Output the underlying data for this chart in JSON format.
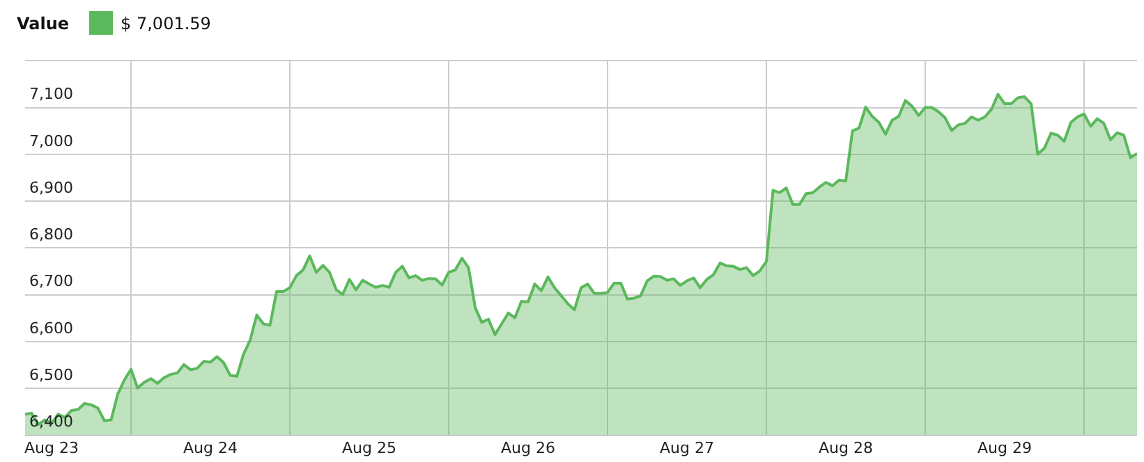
{
  "chart_data": {
    "type": "area",
    "legend_title": "Value",
    "legend": "top left",
    "grid": true,
    "xlim": [
      "--08-23T08:00",
      "--08-30T08:00"
    ],
    "xticks": [
      {
        "value": "--08-23T12:00",
        "label": "Aug 23"
      },
      {
        "value": "--08-24T00:00",
        "label": null
      },
      {
        "value": "--08-24T12:00",
        "label": "Aug 24"
      },
      {
        "value": "--08-25T00:00",
        "label": null
      },
      {
        "value": "--08-25T12:00",
        "label": "Aug 25"
      },
      {
        "value": "--08-26T00:00",
        "label": null
      },
      {
        "value": "--08-26T12:00",
        "label": "Aug 26"
      },
      {
        "value": "--08-27T00:00",
        "label": null
      },
      {
        "value": "--08-27T12:00",
        "label": "Aug 27"
      },
      {
        "value": "--08-28T00:00",
        "label": null
      },
      {
        "value": "--08-28T12:00",
        "label": "Aug 28"
      },
      {
        "value": "--08-29T00:00",
        "label": null
      },
      {
        "value": "--08-29T12:00",
        "label": "Aug 29"
      },
      {
        "value": "--08-30T00:00",
        "label": null
      }
    ],
    "ylim": [
      6400,
      7200
    ],
    "yticks": [
      {
        "value": 6400,
        "label": "6,400"
      },
      {
        "value": 6500,
        "label": "6,500"
      },
      {
        "value": 6600,
        "label": "6,600"
      },
      {
        "value": 6700,
        "label": "6,700"
      },
      {
        "value": 6800,
        "label": "6,800"
      },
      {
        "value": 6900,
        "label": "6,900"
      },
      {
        "value": 7000,
        "label": "7,000"
      },
      {
        "value": 7100,
        "label": "7,100"
      },
      {
        "value": 7200,
        "label": null
      }
    ],
    "x": [
      "--08-23T08:00",
      "--08-23T09:00",
      "--08-23T10:00",
      "--08-23T11:00",
      "--08-23T12:00",
      "--08-23T13:00",
      "--08-23T14:00",
      "--08-23T15:00",
      "--08-23T16:00",
      "--08-23T17:00",
      "--08-23T18:00",
      "--08-23T19:00",
      "--08-23T20:00",
      "--08-23T21:00",
      "--08-23T22:00",
      "--08-23T23:00",
      "--08-24T00:00",
      "--08-24T01:00",
      "--08-24T02:00",
      "--08-24T03:00",
      "--08-24T04:00",
      "--08-24T05:00",
      "--08-24T06:00",
      "--08-24T07:00",
      "--08-24T08:00",
      "--08-24T09:00",
      "--08-24T10:00",
      "--08-24T11:00",
      "--08-24T12:00",
      "--08-24T13:00",
      "--08-24T14:00",
      "--08-24T15:00",
      "--08-24T16:00",
      "--08-24T17:00",
      "--08-24T18:00",
      "--08-24T19:00",
      "--08-24T20:00",
      "--08-24T21:00",
      "--08-24T22:00",
      "--08-24T23:00",
      "--08-25T00:00",
      "--08-25T01:00",
      "--08-25T02:00",
      "--08-25T03:00",
      "--08-25T04:00",
      "--08-25T05:00",
      "--08-25T06:00",
      "--08-25T07:00",
      "--08-25T08:00",
      "--08-25T09:00",
      "--08-25T10:00",
      "--08-25T11:00",
      "--08-25T12:00",
      "--08-25T13:00",
      "--08-25T14:00",
      "--08-25T15:00",
      "--08-25T16:00",
      "--08-25T17:00",
      "--08-25T18:00",
      "--08-25T19:00",
      "--08-25T20:00",
      "--08-25T21:00",
      "--08-25T22:00",
      "--08-25T23:00",
      "--08-26T00:00",
      "--08-26T01:00",
      "--08-26T02:00",
      "--08-26T03:00",
      "--08-26T04:00",
      "--08-26T05:00",
      "--08-26T06:00",
      "--08-26T07:00",
      "--08-26T08:00",
      "--08-26T09:00",
      "--08-26T10:00",
      "--08-26T11:00",
      "--08-26T12:00",
      "--08-26T13:00",
      "--08-26T14:00",
      "--08-26T15:00",
      "--08-26T16:00",
      "--08-26T17:00",
      "--08-26T18:00",
      "--08-26T19:00",
      "--08-26T20:00",
      "--08-26T21:00",
      "--08-26T22:00",
      "--08-26T23:00",
      "--08-27T00:00",
      "--08-27T01:00",
      "--08-27T02:00",
      "--08-27T03:00",
      "--08-27T04:00",
      "--08-27T05:00",
      "--08-27T06:00",
      "--08-27T07:00",
      "--08-27T08:00",
      "--08-27T09:00",
      "--08-27T10:00",
      "--08-27T11:00",
      "--08-27T12:00",
      "--08-27T13:00",
      "--08-27T14:00",
      "--08-27T15:00",
      "--08-27T16:00",
      "--08-27T17:00",
      "--08-27T18:00",
      "--08-27T19:00",
      "--08-27T20:00",
      "--08-27T21:00",
      "--08-27T22:00",
      "--08-27T23:00",
      "--08-28T00:00",
      "--08-28T01:00",
      "--08-28T02:00",
      "--08-28T03:00",
      "--08-28T04:00",
      "--08-28T05:00",
      "--08-28T06:00",
      "--08-28T07:00",
      "--08-28T08:00",
      "--08-28T09:00",
      "--08-28T10:00",
      "--08-28T11:00",
      "--08-28T12:00",
      "--08-28T13:00",
      "--08-28T14:00",
      "--08-28T15:00",
      "--08-28T16:00",
      "--08-28T17:00",
      "--08-28T18:00",
      "--08-28T19:00",
      "--08-28T20:00",
      "--08-28T21:00",
      "--08-28T22:00",
      "--08-28T23:00",
      "--08-29T00:00",
      "--08-29T01:00",
      "--08-29T02:00",
      "--08-29T03:00",
      "--08-29T04:00",
      "--08-29T05:00",
      "--08-29T06:00",
      "--08-29T07:00",
      "--08-29T08:00",
      "--08-29T09:00",
      "--08-29T10:00",
      "--08-29T11:00",
      "--08-29T12:00",
      "--08-29T13:00",
      "--08-29T14:00",
      "--08-29T15:00",
      "--08-29T16:00",
      "--08-29T17:00",
      "--08-29T18:00",
      "--08-29T19:00",
      "--08-29T20:00",
      "--08-29T21:00",
      "--08-29T22:00",
      "--08-29T23:00",
      "--08-30T00:00",
      "--08-30T01:00",
      "--08-30T02:00",
      "--08-30T03:00",
      "--08-30T04:00",
      "--08-30T05:00",
      "--08-30T06:00",
      "--08-30T07:00",
      "--08-30T08:00"
    ],
    "series": [
      {
        "name": "$ 7,001.59",
        "color": "#5cb85c",
        "values": [
          6445,
          6447,
          6423,
          6433,
          6425,
          6445,
          6438,
          6453,
          6455,
          6468,
          6465,
          6458,
          6431,
          6433,
          6488,
          6518,
          6541,
          6501,
          6513,
          6521,
          6511,
          6523,
          6530,
          6533,
          6551,
          6540,
          6543,
          6558,
          6556,
          6568,
          6555,
          6528,
          6526,
          6573,
          6603,
          6657,
          6638,
          6635,
          6707,
          6707,
          6715,
          6741,
          6753,
          6783,
          6748,
          6763,
          6748,
          6711,
          6701,
          6733,
          6711,
          6731,
          6723,
          6716,
          6720,
          6716,
          6748,
          6761,
          6736,
          6741,
          6731,
          6735,
          6734,
          6721,
          6748,
          6753,
          6778,
          6758,
          6673,
          6641,
          6648,
          6615,
          6638,
          6661,
          6651,
          6686,
          6685,
          6723,
          6709,
          6738,
          6715,
          6698,
          6681,
          6668,
          6715,
          6723,
          6703,
          6703,
          6705,
          6725,
          6725,
          6691,
          6693,
          6698,
          6730,
          6740,
          6739,
          6731,
          6734,
          6720,
          6730,
          6736,
          6715,
          6733,
          6743,
          6768,
          6762,
          6761,
          6754,
          6758,
          6741,
          6751,
          6771,
          6923,
          6918,
          6928,
          6893,
          6893,
          6916,
          6918,
          6930,
          6940,
          6933,
          6945,
          6943,
          7050,
          7056,
          7101,
          7081,
          7068,
          7043,
          7073,
          7081,
          7115,
          7103,
          7083,
          7100,
          7100,
          7091,
          7078,
          7051,
          7063,
          7066,
          7080,
          7073,
          7080,
          7096,
          7128,
          7108,
          7108,
          7121,
          7123,
          7108,
          7000,
          7013,
          7045,
          7041,
          7028,
          7068,
          7080,
          7086,
          7060,
          7076,
          7066,
          7031,
          7046,
          7041,
          6993,
          7001.59
        ]
      }
    ]
  }
}
